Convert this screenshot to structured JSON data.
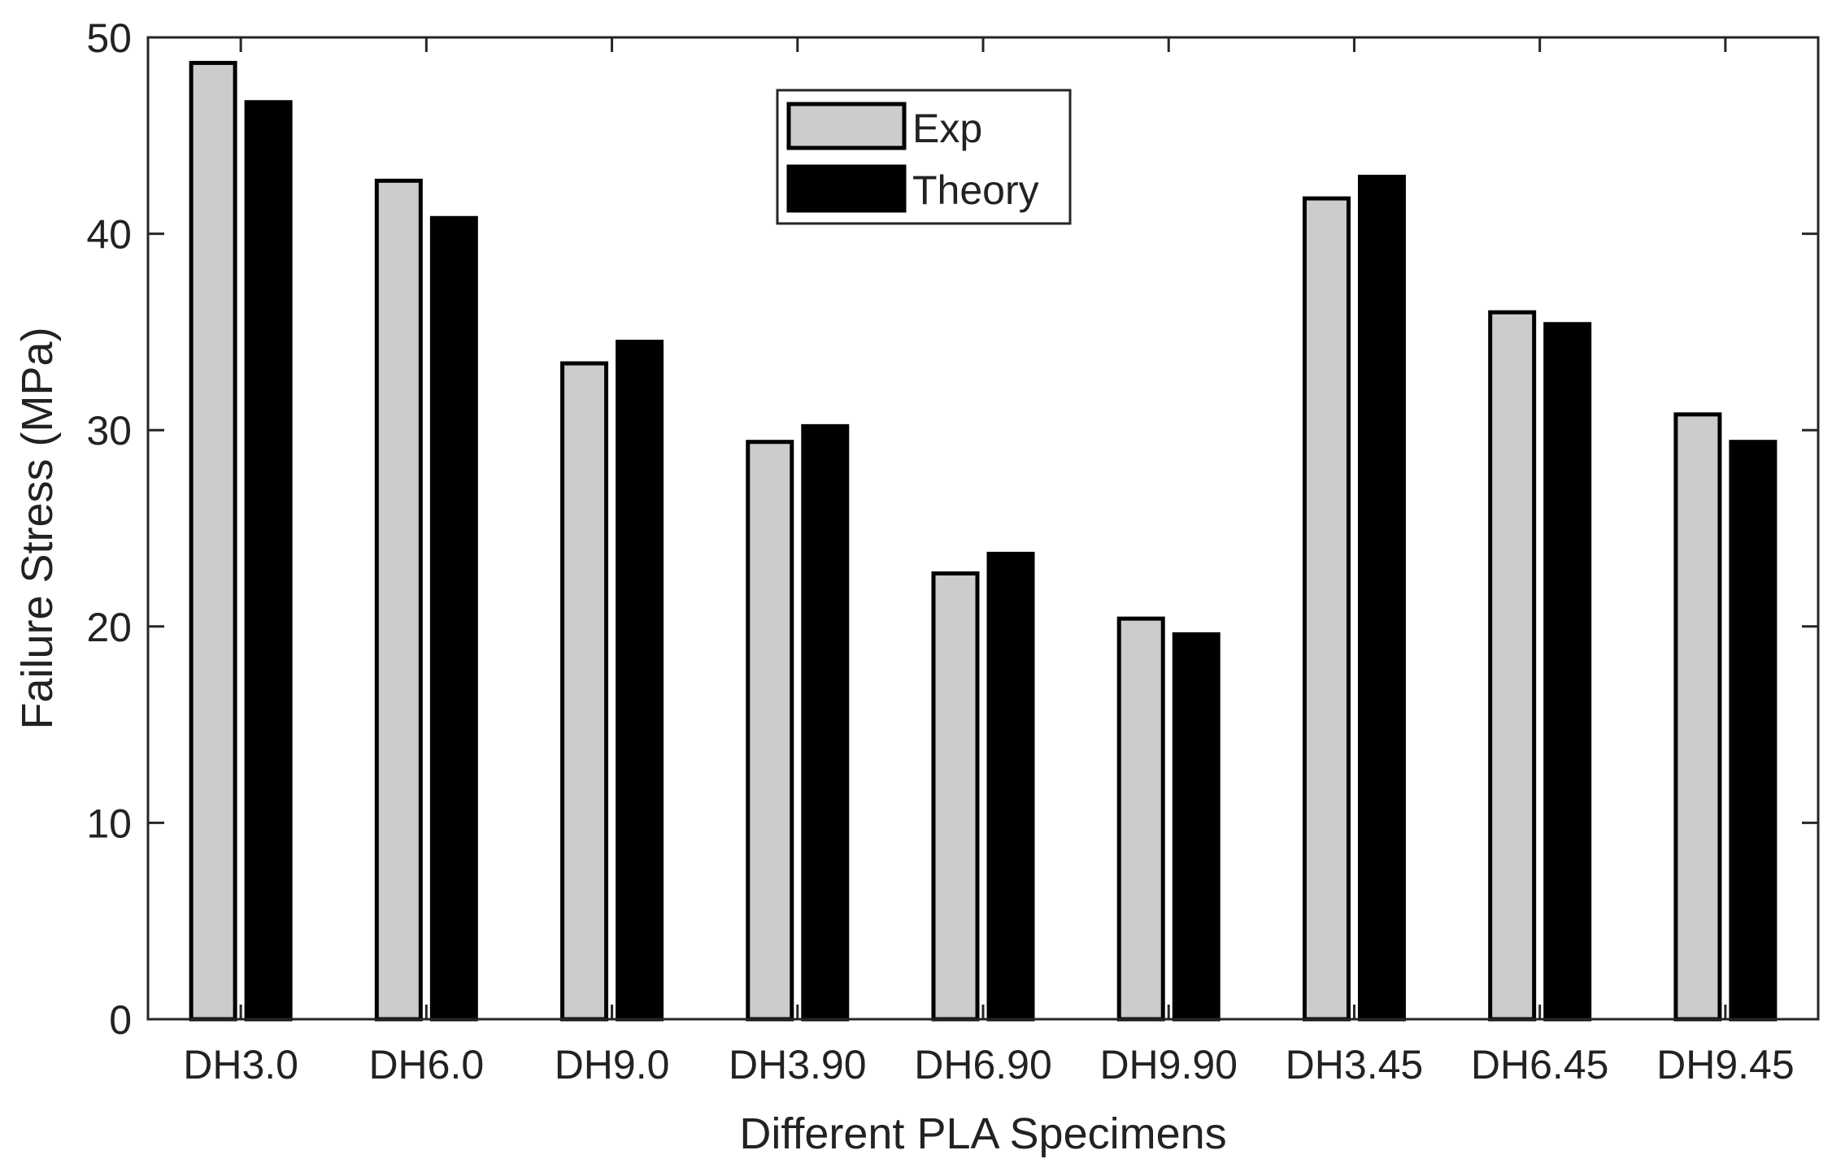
{
  "chart_data": {
    "type": "bar",
    "title": "",
    "xlabel": "Different PLA Specimens",
    "ylabel": "Failure Stress (MPa)",
    "categories": [
      "DH3.0",
      "DH6.0",
      "DH9.0",
      "DH3.90",
      "DH6.90",
      "DH9.90",
      "DH3.45",
      "DH6.45",
      "DH9.45"
    ],
    "series": [
      {
        "name": "Exp",
        "color": "#cccccc",
        "values": [
          48.7,
          42.7,
          33.4,
          29.4,
          22.7,
          20.4,
          41.8,
          36.0,
          30.8
        ]
      },
      {
        "name": "Theory",
        "color": "#000000",
        "values": [
          46.7,
          40.8,
          34.5,
          30.2,
          23.7,
          19.6,
          42.9,
          35.4,
          29.4
        ]
      }
    ],
    "ylim": [
      0,
      50
    ],
    "yticks": [
      0,
      10,
      20,
      30,
      40,
      50
    ],
    "grid": false,
    "legend_position": "top-center"
  }
}
